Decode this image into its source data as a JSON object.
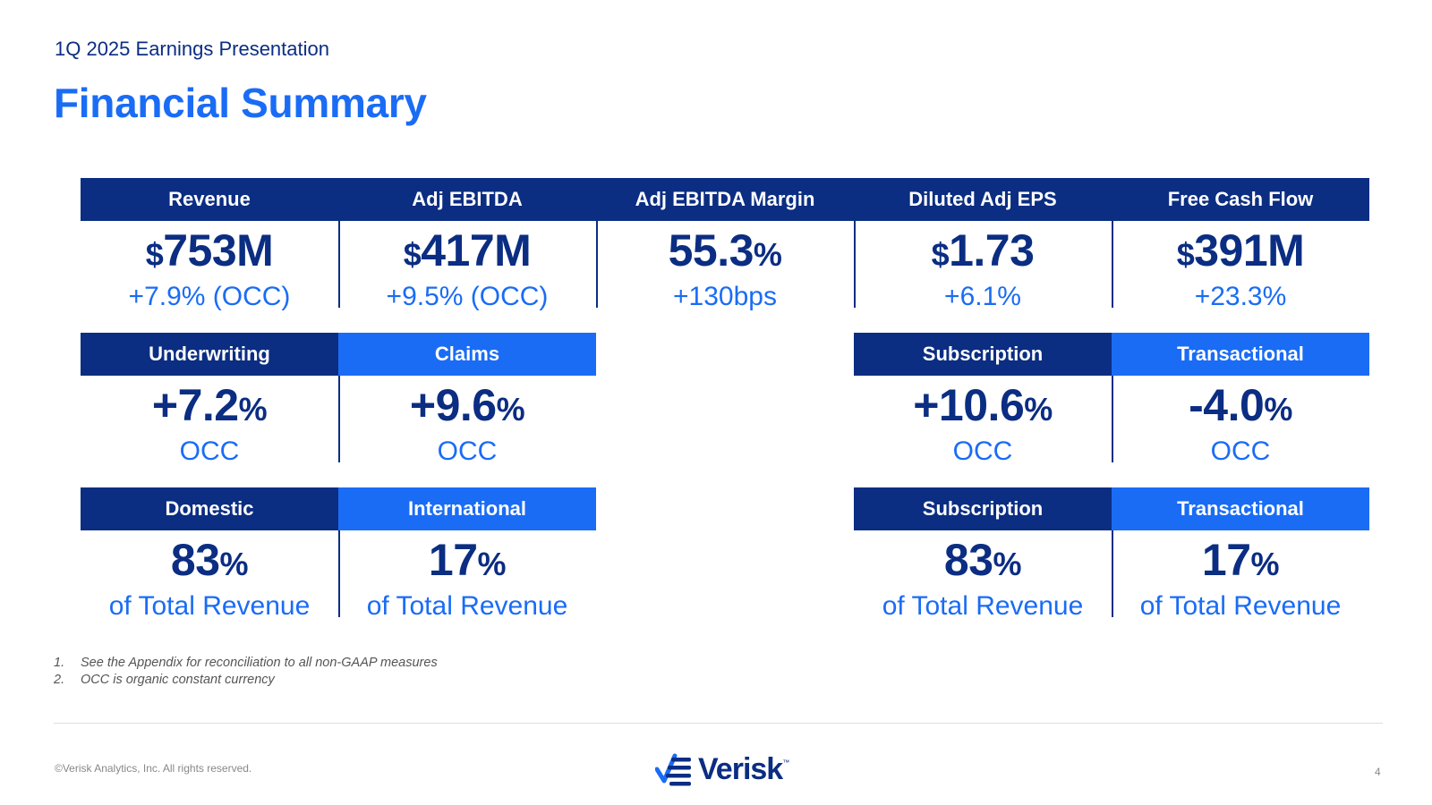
{
  "header": {
    "subtitle": "1Q 2025 Earnings Presentation",
    "title": "Financial Summary"
  },
  "row1": [
    {
      "label": "Revenue",
      "symbol": "$",
      "value": "753M",
      "suffix": "",
      "sub": "+7.9% (OCC)"
    },
    {
      "label": "Adj EBITDA",
      "symbol": "$",
      "value": "417M",
      "suffix": "",
      "sub": "+9.5% (OCC)"
    },
    {
      "label": "Adj EBITDA Margin",
      "symbol": "",
      "value": "55.3",
      "suffix": "%",
      "sub": "+130bps"
    },
    {
      "label": "Diluted Adj EPS",
      "symbol": "$",
      "value": "1.73",
      "suffix": "",
      "sub": "+6.1%"
    },
    {
      "label": "Free Cash Flow",
      "symbol": "$",
      "value": "391M",
      "suffix": "",
      "sub": "+23.3%"
    }
  ],
  "row2": [
    {
      "label": "Underwriting",
      "value": "+7.2",
      "suffix": "%",
      "sub": "OCC"
    },
    {
      "label": "Claims",
      "value": "+9.6",
      "suffix": "%",
      "sub": "OCC"
    },
    {
      "label": "Subscription",
      "value": "+10.6",
      "suffix": "%",
      "sub": "OCC"
    },
    {
      "label": "Transactional",
      "value": "-4.0",
      "suffix": "%",
      "sub": "OCC"
    }
  ],
  "row3": [
    {
      "label": "Domestic",
      "value": "83",
      "suffix": "%",
      "sub": "of Total Revenue"
    },
    {
      "label": "International",
      "value": "17",
      "suffix": "%",
      "sub": "of Total Revenue"
    },
    {
      "label": "Subscription",
      "value": "83",
      "suffix": "%",
      "sub": "of Total Revenue"
    },
    {
      "label": "Transactional",
      "value": "17",
      "suffix": "%",
      "sub": "of Total Revenue"
    }
  ],
  "footnotes": [
    {
      "num": "1.",
      "text": "See the Appendix for reconciliation to all non-GAAP measures"
    },
    {
      "num": "2.",
      "text": "OCC is organic constant currency"
    }
  ],
  "footer": {
    "copyright": "©Verisk Analytics, Inc. All rights reserved.",
    "logo_text": "Verisk",
    "trademark": "™",
    "page_number": "4"
  },
  "colors": {
    "navy": "#0b2d82",
    "blue": "#1a6cf5"
  }
}
